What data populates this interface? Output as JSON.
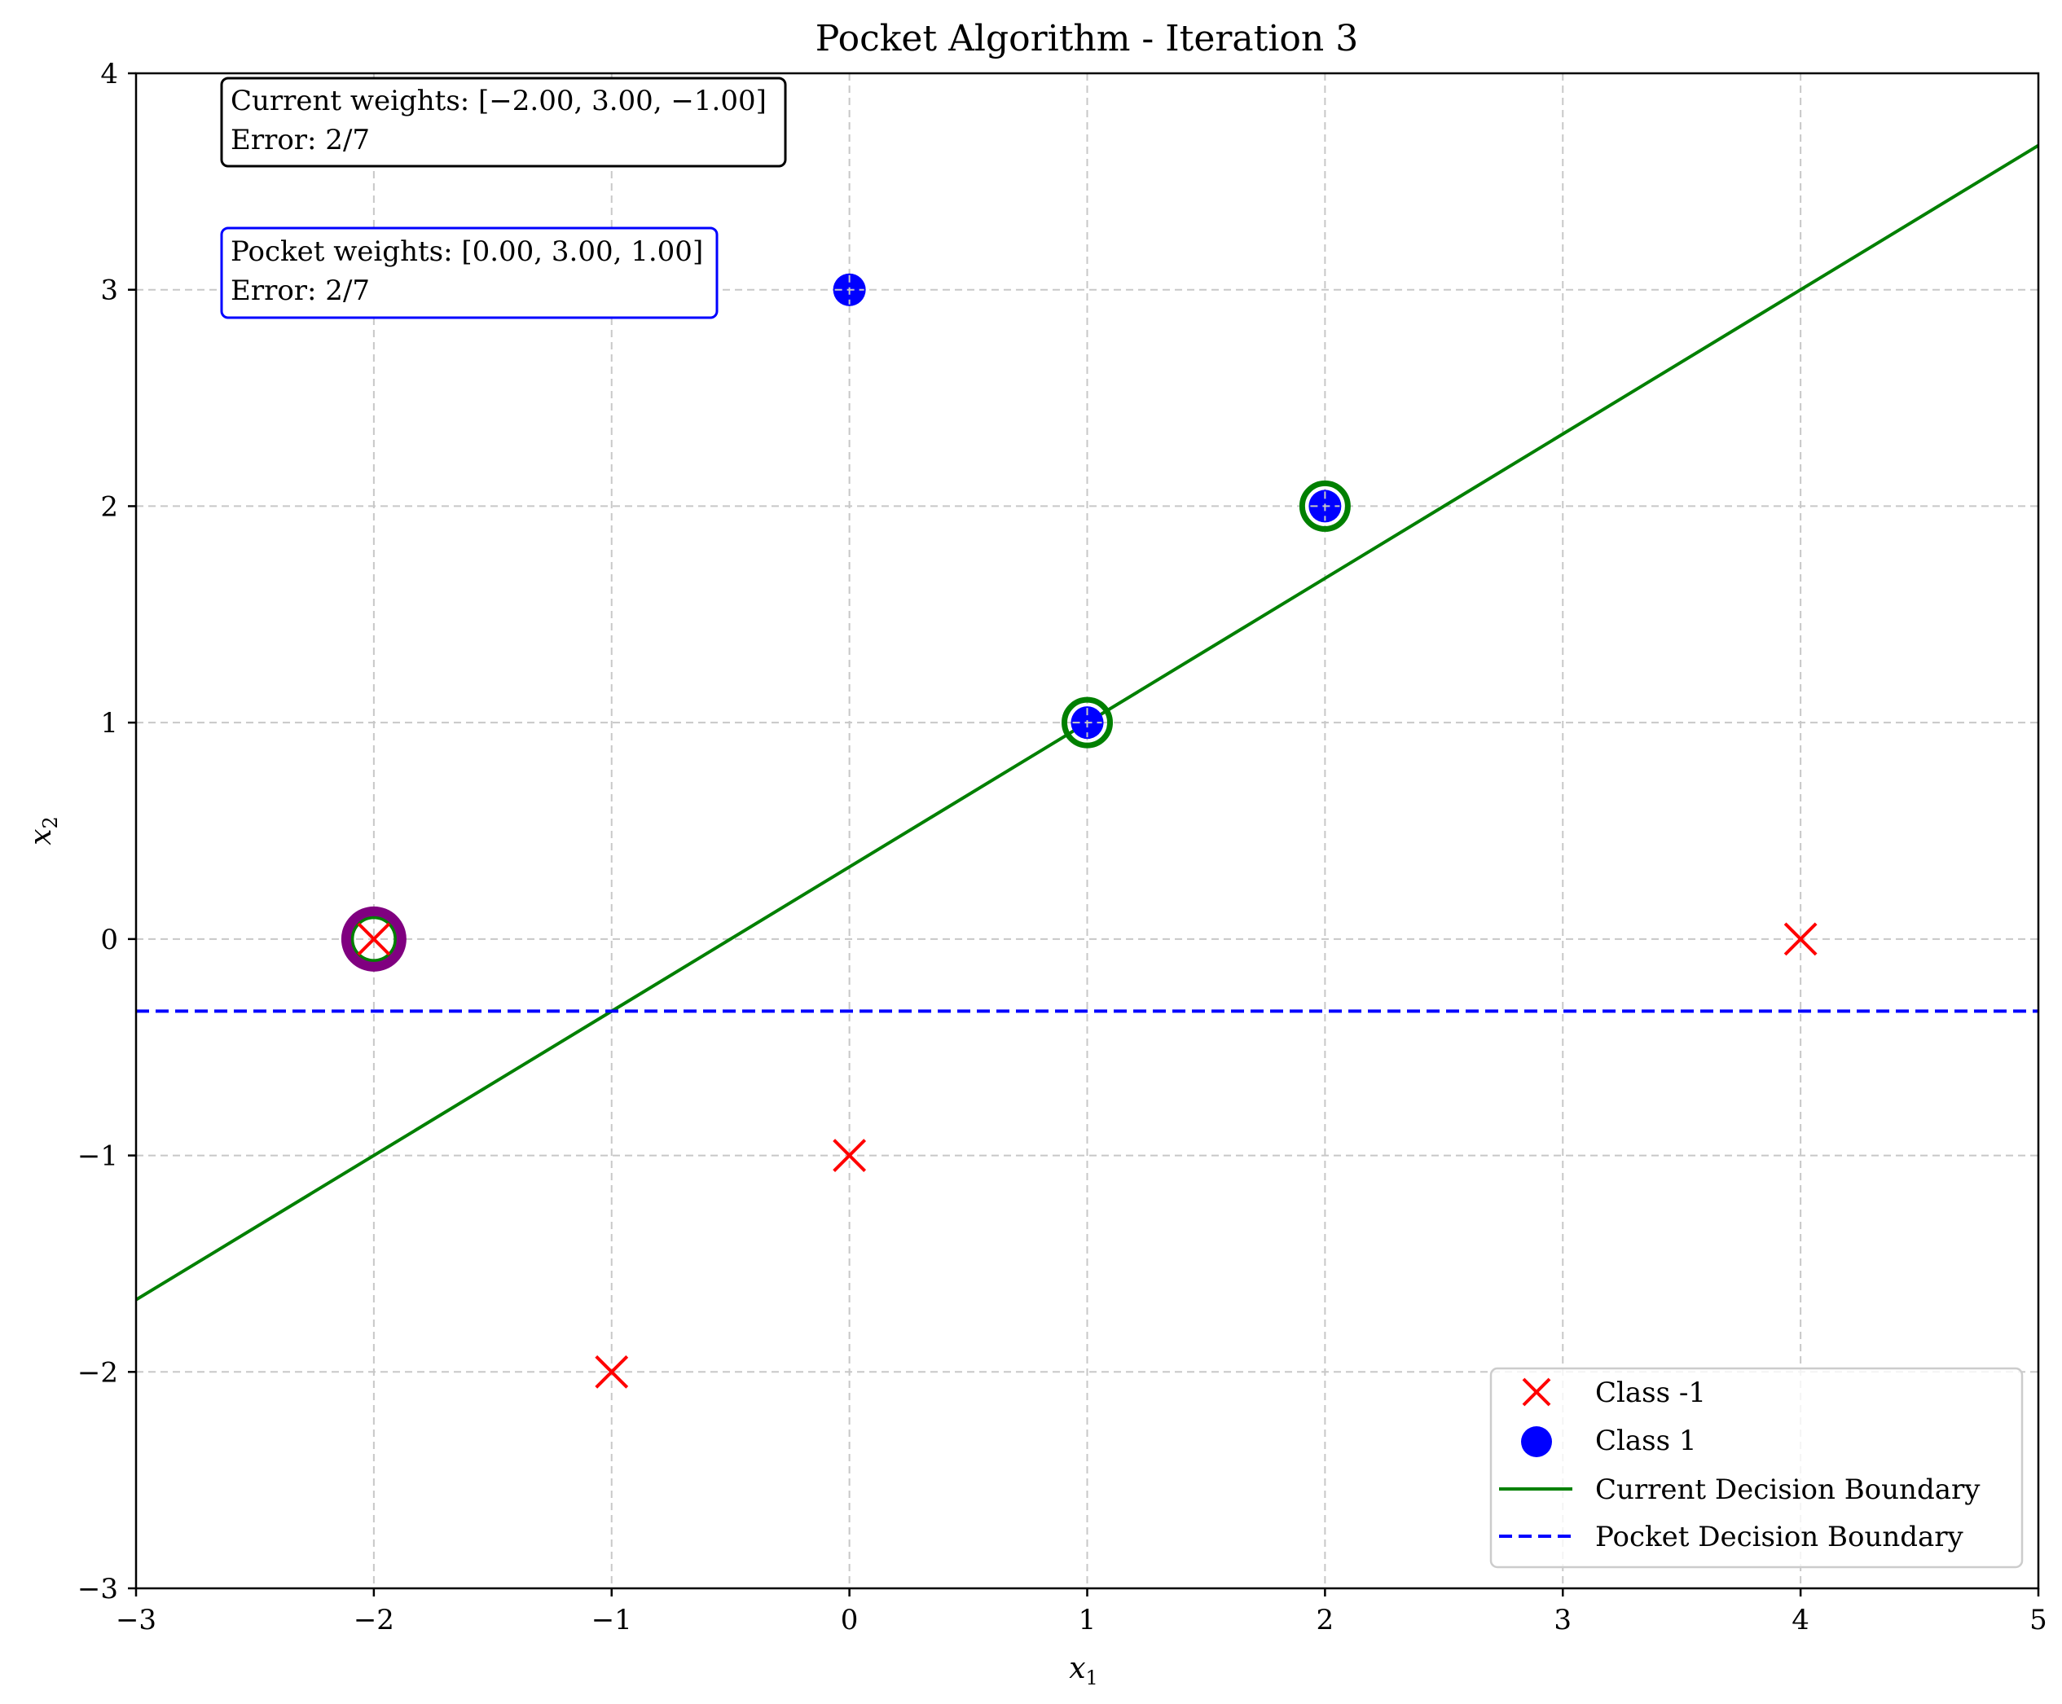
{
  "chart_data": {
    "type": "scatter",
    "title": "Pocket Algorithm - Iteration 3",
    "xlabel": "x",
    "xlabel_sub": "1",
    "ylabel": "x",
    "ylabel_sub": "2",
    "xlim": [
      -3,
      5
    ],
    "ylim": [
      -3,
      4
    ],
    "xticks": [
      -3,
      -2,
      -1,
      0,
      1,
      2,
      3,
      4,
      5
    ],
    "yticks": [
      -3,
      -2,
      -1,
      0,
      1,
      2,
      3,
      4
    ],
    "xtick_labels": [
      "−3",
      "−2",
      "−1",
      "0",
      "1",
      "2",
      "3",
      "4",
      "5"
    ],
    "ytick_labels": [
      "−3",
      "−2",
      "−1",
      "0",
      "1",
      "2",
      "3",
      "4"
    ],
    "grid": true,
    "series": [
      {
        "name": "Class -1",
        "marker": "x",
        "color": "#ff0000",
        "points": [
          {
            "x": -2,
            "y": 0
          },
          {
            "x": -1,
            "y": -2
          },
          {
            "x": 0,
            "y": -1
          },
          {
            "x": 4,
            "y": 0
          }
        ]
      },
      {
        "name": "Class 1",
        "marker": "o",
        "color": "#0000ff",
        "points": [
          {
            "x": 0,
            "y": 3
          },
          {
            "x": 1,
            "y": 1
          },
          {
            "x": 2,
            "y": 2
          }
        ]
      }
    ],
    "highlighted_points": [
      {
        "x": -2,
        "y": 0,
        "color": "#008000"
      },
      {
        "x": 1,
        "y": 1,
        "color": "#008000"
      },
      {
        "x": 2,
        "y": 2,
        "color": "#008000"
      },
      {
        "x": -2,
        "y": 0,
        "color": "#800080"
      }
    ],
    "lines": [
      {
        "name": "Current Decision Boundary",
        "color": "#008000",
        "style": "solid",
        "points": [
          {
            "x": -3,
            "y": -1.6667
          },
          {
            "x": 5,
            "y": 3.6667
          }
        ]
      },
      {
        "name": "Pocket Decision Boundary",
        "color": "#0000ff",
        "style": "dashed",
        "points": [
          {
            "x": -3,
            "y": -0.3333
          },
          {
            "x": 5,
            "y": -0.3333
          }
        ]
      }
    ],
    "annotations": [
      {
        "line1": "Current weights: [−2.00, 3.00, −1.00]",
        "line2": "Error: 2/7",
        "color": "#000000"
      },
      {
        "line1": "Pocket weights: [0.00, 3.00, 1.00]",
        "line2": "Error: 2/7",
        "color": "#0000ff"
      }
    ],
    "legend_position": "lower-right"
  }
}
